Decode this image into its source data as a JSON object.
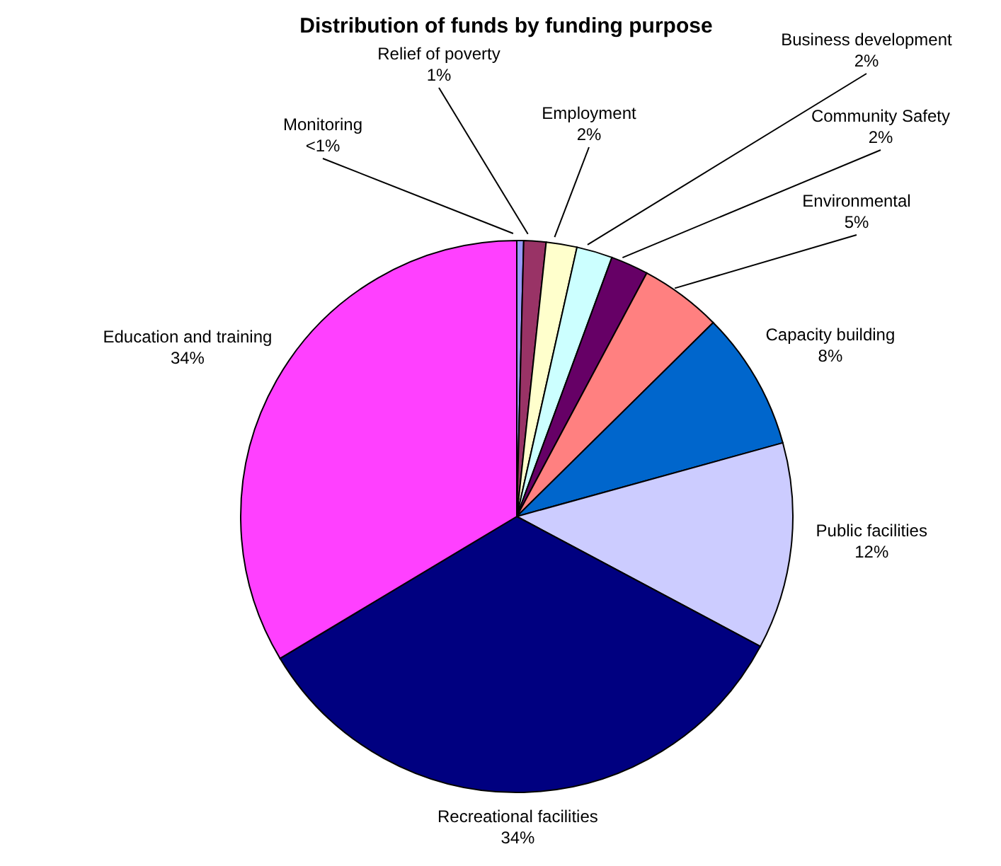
{
  "chart_data": {
    "type": "pie",
    "title": "Distribution of funds by funding purpose",
    "categories": [
      "Monitoring",
      "Relief of poverty",
      "Employment",
      "Business development",
      "Community Safety",
      "Environmental",
      "Capacity building",
      "Public facilities",
      "Recreational facilities",
      "Education and training"
    ],
    "values": [
      0.4,
      1.3,
      1.8,
      2.1,
      2.2,
      4.8,
      8.1,
      12.1,
      33.6,
      33.6
    ],
    "value_labels": [
      "<1%",
      "1%",
      "2%",
      "2%",
      "2%",
      "5%",
      "8%",
      "12%",
      "34%",
      "34%"
    ],
    "colors": [
      "#9999ff",
      "#993366",
      "#ffffcc",
      "#ccffff",
      "#660066",
      "#ff8080",
      "#0066cc",
      "#ccccff",
      "#000080",
      "#ff40ff"
    ],
    "legend": false
  }
}
